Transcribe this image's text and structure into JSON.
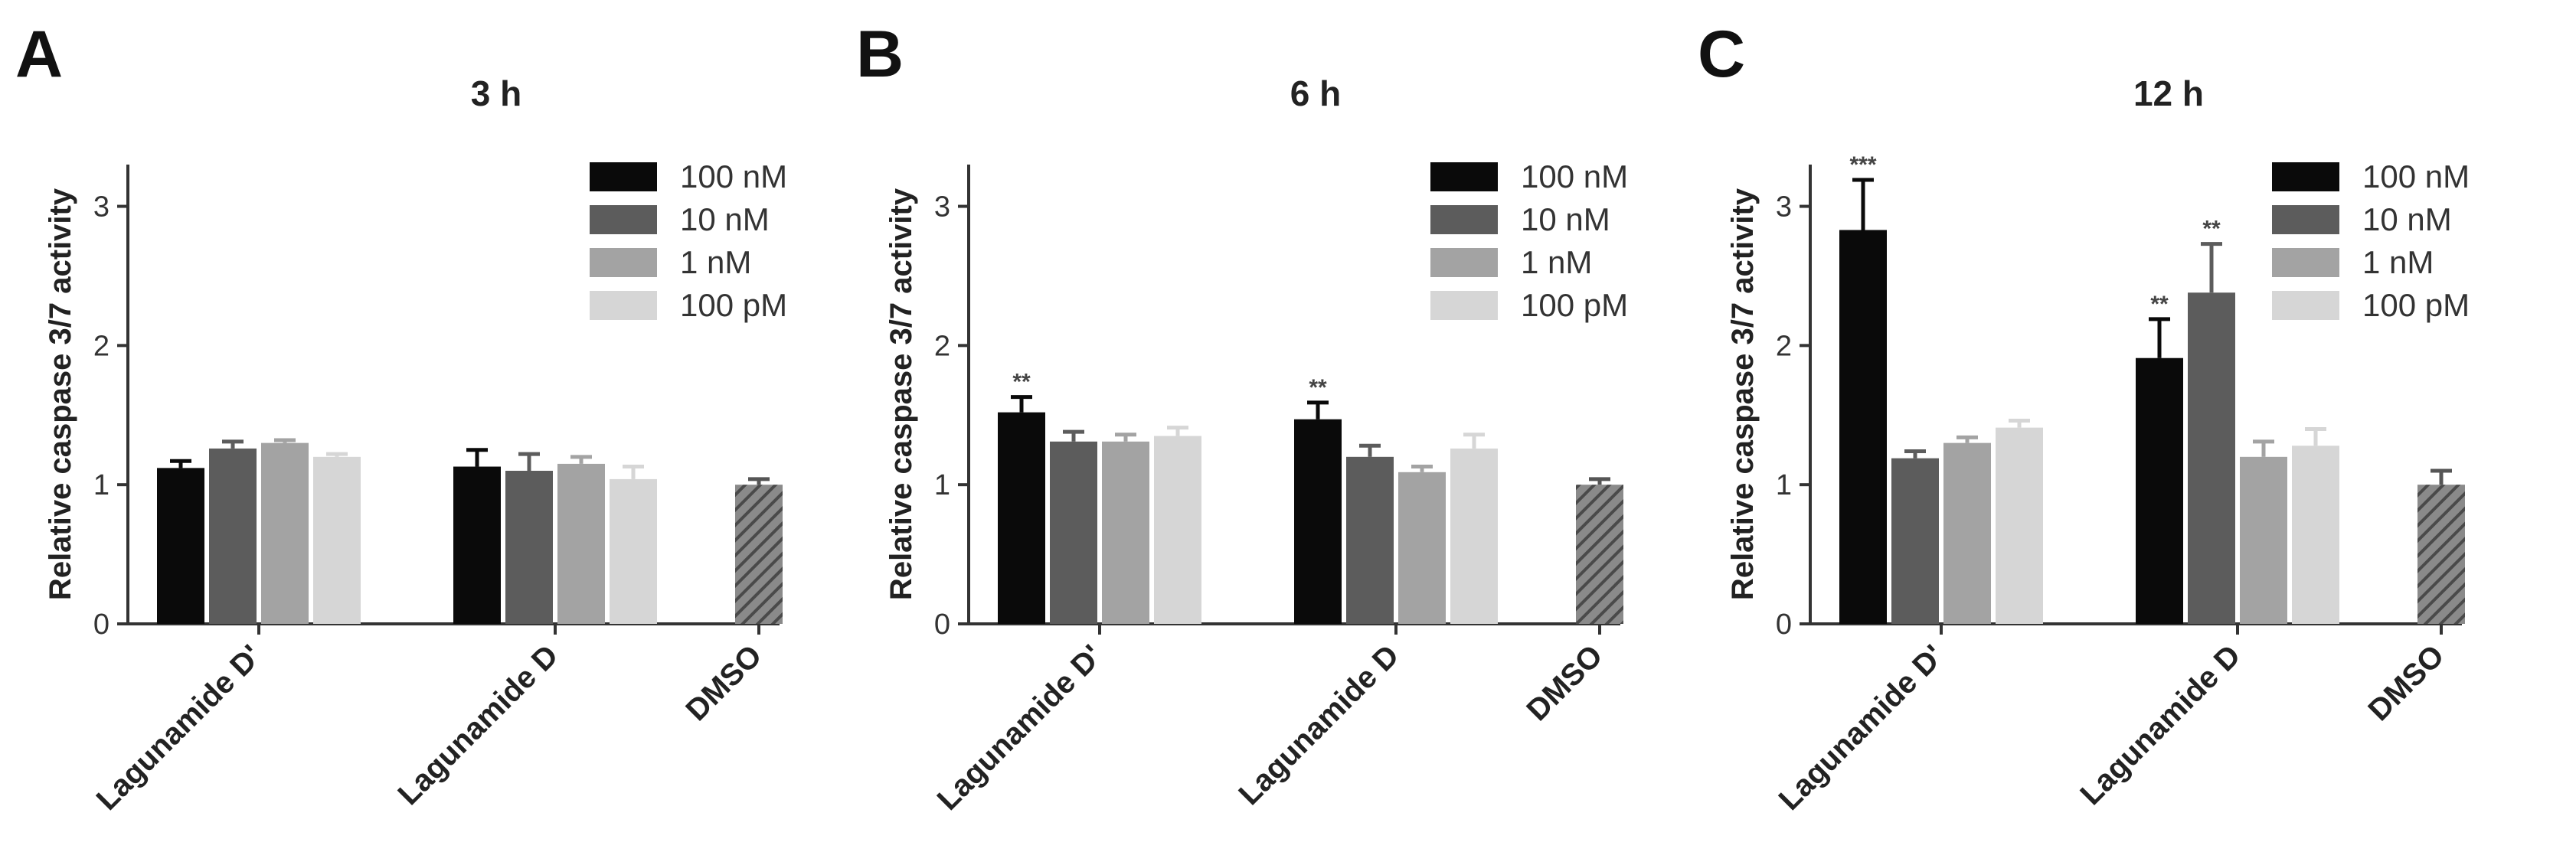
{
  "chart_data": [
    {
      "panel": "A",
      "type": "bar",
      "title": "3 h",
      "ylabel": "Relative caspase 3/7 activity",
      "ylim": [
        0,
        3.3
      ],
      "yticks": [
        "0",
        "1",
        "2",
        "3"
      ],
      "groups": [
        {
          "label": "Lagunamide D'",
          "bars": [
            {
              "series": "100 nM",
              "value": 1.12,
              "err": 0.05,
              "sig": ""
            },
            {
              "series": "10 nM",
              "value": 1.26,
              "err": 0.05,
              "sig": ""
            },
            {
              "series": "1 nM",
              "value": 1.3,
              "err": 0.02,
              "sig": ""
            },
            {
              "series": "100 pM",
              "value": 1.2,
              "err": 0.02,
              "sig": ""
            }
          ]
        },
        {
          "label": "Lagunamide D",
          "bars": [
            {
              "series": "100 nM",
              "value": 1.13,
              "err": 0.12,
              "sig": ""
            },
            {
              "series": "10 nM",
              "value": 1.1,
              "err": 0.12,
              "sig": ""
            },
            {
              "series": "1 nM",
              "value": 1.15,
              "err": 0.05,
              "sig": ""
            },
            {
              "series": "100 pM",
              "value": 1.04,
              "err": 0.09,
              "sig": ""
            }
          ]
        },
        {
          "label": "DMSO",
          "bars": [
            {
              "series": "DMSO",
              "value": 1.0,
              "err": 0.04,
              "sig": ""
            }
          ]
        }
      ]
    },
    {
      "panel": "B",
      "type": "bar",
      "title": "6 h",
      "ylabel": "Relative caspase 3/7 activity",
      "ylim": [
        0,
        3.3
      ],
      "yticks": [
        "0",
        "1",
        "2",
        "3"
      ],
      "groups": [
        {
          "label": "Lagunamide D'",
          "bars": [
            {
              "series": "100 nM",
              "value": 1.52,
              "err": 0.11,
              "sig": "**"
            },
            {
              "series": "10 nM",
              "value": 1.31,
              "err": 0.07,
              "sig": ""
            },
            {
              "series": "1 nM",
              "value": 1.31,
              "err": 0.05,
              "sig": ""
            },
            {
              "series": "100 pM",
              "value": 1.35,
              "err": 0.06,
              "sig": ""
            }
          ]
        },
        {
          "label": "Lagunamide D",
          "bars": [
            {
              "series": "100 nM",
              "value": 1.47,
              "err": 0.12,
              "sig": "**"
            },
            {
              "series": "10 nM",
              "value": 1.2,
              "err": 0.08,
              "sig": ""
            },
            {
              "series": "1 nM",
              "value": 1.09,
              "err": 0.04,
              "sig": ""
            },
            {
              "series": "100 pM",
              "value": 1.26,
              "err": 0.1,
              "sig": ""
            }
          ]
        },
        {
          "label": "DMSO",
          "bars": [
            {
              "series": "DMSO",
              "value": 1.0,
              "err": 0.04,
              "sig": ""
            }
          ]
        }
      ]
    },
    {
      "panel": "C",
      "type": "bar",
      "title": "12 h",
      "ylabel": "Relative caspase 3/7 activity",
      "ylim": [
        0,
        3.3
      ],
      "yticks": [
        "0",
        "1",
        "2",
        "3"
      ],
      "groups": [
        {
          "label": "Lagunamide D'",
          "bars": [
            {
              "series": "100 nM",
              "value": 2.83,
              "err": 0.36,
              "sig": "***"
            },
            {
              "series": "10 nM",
              "value": 1.19,
              "err": 0.05,
              "sig": ""
            },
            {
              "series": "1 nM",
              "value": 1.3,
              "err": 0.04,
              "sig": ""
            },
            {
              "series": "100 pM",
              "value": 1.41,
              "err": 0.05,
              "sig": ""
            }
          ]
        },
        {
          "label": "Lagunamide D",
          "bars": [
            {
              "series": "100 nM",
              "value": 1.91,
              "err": 0.28,
              "sig": "**"
            },
            {
              "series": "10 nM",
              "value": 2.38,
              "err": 0.35,
              "sig": "**"
            },
            {
              "series": "1 nM",
              "value": 1.2,
              "err": 0.11,
              "sig": ""
            },
            {
              "series": "100 pM",
              "value": 1.28,
              "err": 0.12,
              "sig": ""
            }
          ]
        },
        {
          "label": "DMSO",
          "bars": [
            {
              "series": "DMSO",
              "value": 1.0,
              "err": 0.1,
              "sig": ""
            }
          ]
        }
      ]
    }
  ],
  "legend": [
    {
      "name": "100 nM",
      "color": "#0a0a0a"
    },
    {
      "name": "10 nM",
      "color": "#5c5c5c"
    },
    {
      "name": "1 nM",
      "color": "#a3a3a3"
    },
    {
      "name": "100 pM",
      "color": "#d6d6d6"
    }
  ],
  "dmso_fill": {
    "color": "#6e6e6e",
    "pattern": "diagonal-hatch"
  },
  "legend_placement": "top-right",
  "grid": false
}
